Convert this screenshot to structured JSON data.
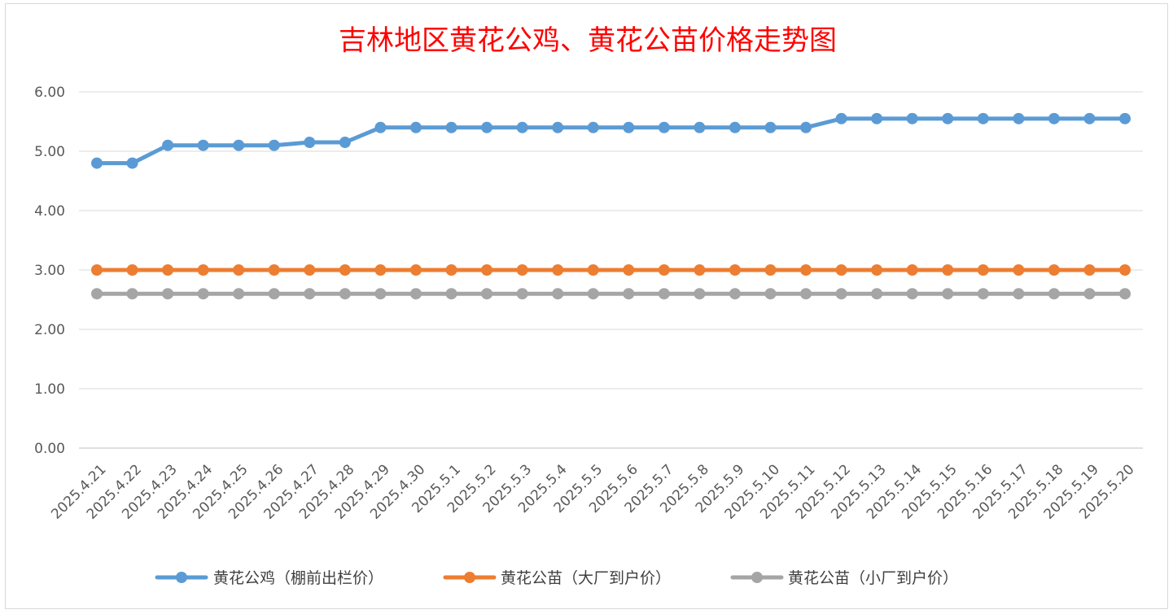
{
  "chart_data": {
    "type": "line",
    "title": "吉林地区黄花公鸡、黄花公苗价格走势图",
    "xlabel": "",
    "ylabel": "",
    "ylim": [
      0,
      6
    ],
    "y_ticks": [
      "0.00",
      "1.00",
      "2.00",
      "3.00",
      "4.00",
      "5.00",
      "6.00"
    ],
    "grid": true,
    "legend_position": "bottom",
    "categories": [
      "2025.4.21",
      "2025.4.22",
      "2025.4.23",
      "2025.4.24",
      "2025.4.25",
      "2025.4.26",
      "2025.4.27",
      "2025.4.28",
      "2025.4.29",
      "2025.4.30",
      "2025.5.1",
      "2025.5.2",
      "2025.5.3",
      "2025.5.4",
      "2025.5.5",
      "2025.5.6",
      "2025.5.7",
      "2025.5.8",
      "2025.5.9",
      "2025.5.10",
      "2025.5.11",
      "2025.5.12",
      "2025.5.13",
      "2025.5.14",
      "2025.5.15",
      "2025.5.16",
      "2025.5.17",
      "2025.5.18",
      "2025.5.19",
      "2025.5.20"
    ],
    "series": [
      {
        "name": "黄花公鸡（棚前出栏价）",
        "color": "#5b9bd5",
        "values": [
          4.8,
          4.8,
          5.1,
          5.1,
          5.1,
          5.1,
          5.15,
          5.15,
          5.4,
          5.4,
          5.4,
          5.4,
          5.4,
          5.4,
          5.4,
          5.4,
          5.4,
          5.4,
          5.4,
          5.4,
          5.4,
          5.55,
          5.55,
          5.55,
          5.55,
          5.55,
          5.55,
          5.55,
          5.55,
          5.55
        ]
      },
      {
        "name": "黄花公苗（大厂到户价）",
        "color": "#ed7d31",
        "values": [
          3.0,
          3.0,
          3.0,
          3.0,
          3.0,
          3.0,
          3.0,
          3.0,
          3.0,
          3.0,
          3.0,
          3.0,
          3.0,
          3.0,
          3.0,
          3.0,
          3.0,
          3.0,
          3.0,
          3.0,
          3.0,
          3.0,
          3.0,
          3.0,
          3.0,
          3.0,
          3.0,
          3.0,
          3.0,
          3.0
        ]
      },
      {
        "name": "黄花公苗（小厂到户价）",
        "color": "#a5a5a5",
        "values": [
          2.6,
          2.6,
          2.6,
          2.6,
          2.6,
          2.6,
          2.6,
          2.6,
          2.6,
          2.6,
          2.6,
          2.6,
          2.6,
          2.6,
          2.6,
          2.6,
          2.6,
          2.6,
          2.6,
          2.6,
          2.6,
          2.6,
          2.6,
          2.6,
          2.6,
          2.6,
          2.6,
          2.6,
          2.6,
          2.6
        ]
      }
    ]
  }
}
